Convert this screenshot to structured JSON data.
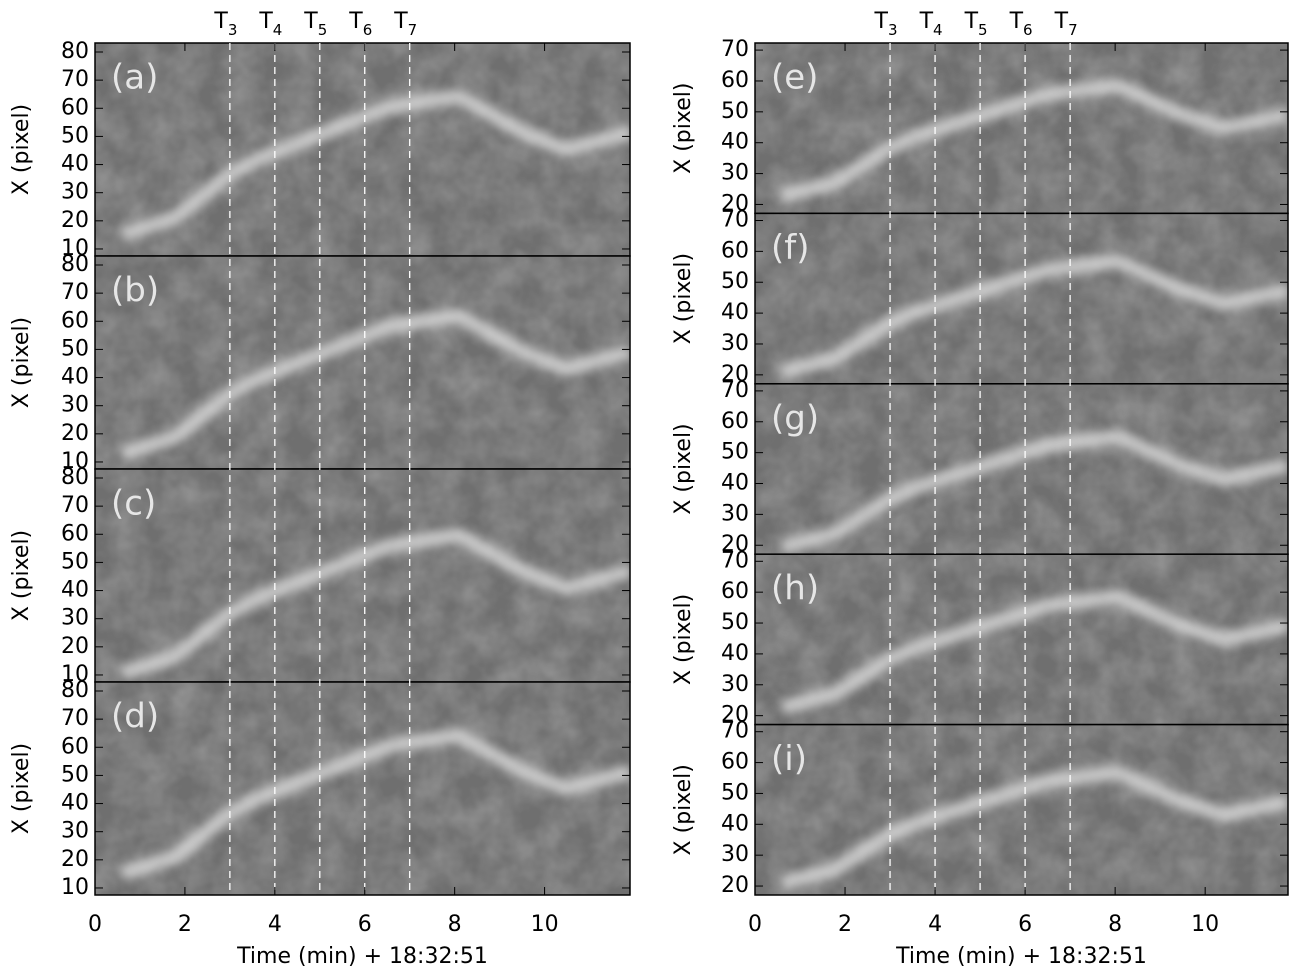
{
  "chart_data": [
    {
      "type": "image",
      "panels": [
        {
          "label": "(a)"
        },
        {
          "label": "(b)"
        },
        {
          "label": "(c)"
        },
        {
          "label": "(d)"
        }
      ],
      "xlim": [
        0,
        11.9
      ],
      "xticks": [
        0,
        2,
        4,
        6,
        8,
        10
      ],
      "xlabel": "Time (min) + 18:32:51",
      "ylim": [
        7.5,
        83.2
      ],
      "yticks": [
        10,
        20,
        30,
        40,
        50,
        60,
        70,
        80
      ],
      "ylabel": "X (pixel)",
      "markers": [
        {
          "value": 3,
          "label": "T",
          "sub": "3"
        },
        {
          "value": 4,
          "label": "T",
          "sub": "4"
        },
        {
          "value": 5,
          "label": "T",
          "sub": "5"
        },
        {
          "value": 6,
          "label": "T",
          "sub": "6"
        },
        {
          "value": 7,
          "label": "T",
          "sub": "7"
        }
      ]
    },
    {
      "type": "image",
      "panels": [
        {
          "label": "(e)"
        },
        {
          "label": "(f)"
        },
        {
          "label": "(g)"
        },
        {
          "label": "(h)"
        },
        {
          "label": "(i)"
        }
      ],
      "xlim": [
        0,
        11.84
      ],
      "xticks": [
        0,
        2,
        4,
        6,
        8,
        10
      ],
      "xlabel": "Time (min) + 18:32:51",
      "ylim": [
        17.1,
        72.3
      ],
      "yticks": [
        20,
        30,
        40,
        50,
        60,
        70
      ],
      "ylabel": "X (pixel)",
      "markers": [
        {
          "value": 3,
          "label": "T",
          "sub": "3"
        },
        {
          "value": 4,
          "label": "T",
          "sub": "4"
        },
        {
          "value": 5,
          "label": "T",
          "sub": "5"
        },
        {
          "value": 6,
          "label": "T",
          "sub": "6"
        },
        {
          "value": 7,
          "label": "T",
          "sub": "7"
        }
      ]
    }
  ]
}
